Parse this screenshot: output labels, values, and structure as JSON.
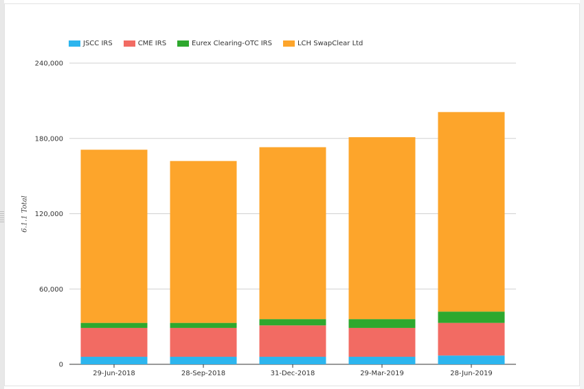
{
  "chart_data": {
    "type": "bar",
    "stacked": true,
    "categories": [
      "29-Jun-2018",
      "28-Sep-2018",
      "31-Dec-2018",
      "29-Mar-2019",
      "28-Jun-2019"
    ],
    "series": [
      {
        "name": "JSCC IRS",
        "color": "#2db5ee",
        "values": [
          6000,
          6000,
          6000,
          6000,
          7000
        ]
      },
      {
        "name": "CME IRS",
        "color": "#f26b63",
        "values": [
          23000,
          23000,
          25000,
          23000,
          26000
        ]
      },
      {
        "name": "Eurex Clearing-OTC IRS",
        "color": "#2ea82e",
        "values": [
          4000,
          4000,
          5000,
          7000,
          9000
        ]
      },
      {
        "name": "LCH SwapClear Ltd",
        "color": "#fda52b",
        "values": [
          138000,
          129000,
          137000,
          145000,
          159000
        ]
      }
    ],
    "ylabel": "6.1.1 Total",
    "ylim": [
      0,
      240000
    ],
    "yticks": [
      0,
      60000,
      120000,
      180000,
      240000
    ],
    "ytick_labels": [
      "0",
      "60,000",
      "120,000",
      "180,000",
      "240,000"
    ],
    "grid": true,
    "legend_position": "top-left"
  }
}
